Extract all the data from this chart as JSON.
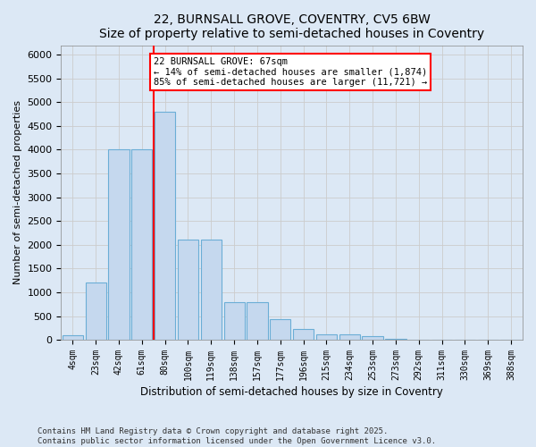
{
  "title1": "22, BURNSALL GROVE, COVENTRY, CV5 6BW",
  "title2": "Size of property relative to semi-detached houses in Coventry",
  "xlabel": "Distribution of semi-detached houses by size in Coventry",
  "ylabel": "Number of semi-detached properties",
  "categories": [
    "4sqm",
    "23sqm",
    "42sqm",
    "61sqm",
    "80sqm",
    "100sqm",
    "119sqm",
    "138sqm",
    "157sqm",
    "177sqm",
    "196sqm",
    "215sqm",
    "234sqm",
    "253sqm",
    "273sqm",
    "292sqm",
    "311sqm",
    "330sqm",
    "369sqm",
    "388sqm"
  ],
  "values": [
    100,
    1200,
    4000,
    4000,
    4800,
    2100,
    2100,
    800,
    800,
    430,
    230,
    120,
    120,
    70,
    20,
    5,
    0,
    0,
    0,
    0
  ],
  "bar_color": "#c5d8ee",
  "bar_edge_color": "#6baed6",
  "vline_x": 3.5,
  "vline_color": "red",
  "annotation_text": "22 BURNSALL GROVE: 67sqm\n← 14% of semi-detached houses are smaller (1,874)\n85% of semi-detached houses are larger (11,721) →",
  "ann_box_fc": "white",
  "ann_box_ec": "red",
  "ylim": [
    0,
    6200
  ],
  "yticks": [
    0,
    500,
    1000,
    1500,
    2000,
    2500,
    3000,
    3500,
    4000,
    4500,
    5000,
    5500,
    6000
  ],
  "grid_color": "#cccccc",
  "bg_color": "#dce8f5",
  "footer": "Contains HM Land Registry data © Crown copyright and database right 2025.\nContains public sector information licensed under the Open Government Licence v3.0."
}
